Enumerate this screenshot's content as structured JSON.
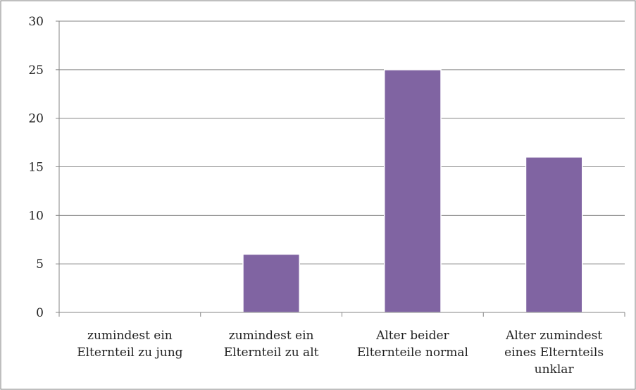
{
  "chart_data": {
    "type": "bar",
    "categories": [
      [
        "zumindest ein",
        "Elternteil zu jung"
      ],
      [
        "zumindest ein",
        "Elternteil zu alt"
      ],
      [
        "Alter beider",
        "Elternteile normal"
      ],
      [
        "Alter zumindest",
        "eines Elternteils",
        "unklar"
      ]
    ],
    "values": [
      0,
      6,
      25,
      16
    ],
    "ylim": [
      0,
      30
    ],
    "yticks": [
      0,
      5,
      10,
      15,
      20,
      25,
      30
    ],
    "bar_color": "#8064a2",
    "grid": true,
    "legend": "none"
  }
}
